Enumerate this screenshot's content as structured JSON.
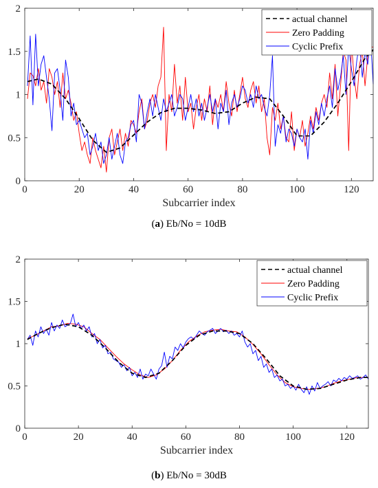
{
  "chart_data": [
    {
      "type": "line",
      "caption_letter": "a",
      "caption_text": "Eb/No = 10dB",
      "xlabel": "Subcarrier index",
      "ylabel": "",
      "xlim": [
        0,
        128
      ],
      "ylim": [
        0,
        2
      ],
      "xticks": [
        0,
        20,
        40,
        60,
        80,
        100,
        120
      ],
      "yticks": [
        0,
        0.5,
        1,
        1.5,
        2
      ],
      "grid": false,
      "legend_position": "top-right",
      "series": [
        {
          "name": "actual channel",
          "color": "#000000",
          "style": "dashed",
          "x": [
            1,
            5,
            10,
            15,
            20,
            25,
            30,
            35,
            40,
            45,
            50,
            55,
            60,
            65,
            70,
            75,
            80,
            85,
            90,
            95,
            100,
            105,
            110,
            115,
            120,
            125,
            128
          ],
          "y": [
            1.15,
            1.18,
            1.12,
            0.95,
            0.72,
            0.47,
            0.33,
            0.38,
            0.53,
            0.68,
            0.79,
            0.84,
            0.84,
            0.82,
            0.78,
            0.8,
            0.9,
            0.97,
            0.95,
            0.75,
            0.52,
            0.52,
            0.68,
            0.9,
            1.15,
            1.42,
            1.52
          ]
        },
        {
          "name": "Zero Padding",
          "color": "#ff0000",
          "style": "solid",
          "x": [
            1,
            2,
            3,
            4,
            5,
            6,
            7,
            8,
            9,
            10,
            11,
            12,
            13,
            14,
            15,
            16,
            17,
            18,
            19,
            20,
            21,
            22,
            23,
            24,
            25,
            26,
            27,
            28,
            29,
            30,
            31,
            32,
            33,
            34,
            35,
            36,
            37,
            38,
            39,
            40,
            41,
            42,
            43,
            44,
            45,
            46,
            47,
            48,
            49,
            50,
            51,
            52,
            53,
            54,
            55,
            56,
            57,
            58,
            59,
            60,
            61,
            62,
            63,
            64,
            65,
            66,
            67,
            68,
            69,
            70,
            71,
            72,
            73,
            74,
            75,
            76,
            77,
            78,
            79,
            80,
            81,
            82,
            83,
            84,
            85,
            86,
            87,
            88,
            89,
            90,
            91,
            92,
            93,
            94,
            95,
            96,
            97,
            98,
            99,
            100,
            101,
            102,
            103,
            104,
            105,
            106,
            107,
            108,
            109,
            110,
            111,
            112,
            113,
            114,
            115,
            116,
            117,
            118,
            119,
            120,
            121,
            122,
            123,
            124,
            125,
            126,
            127,
            128
          ],
          "y": [
            0.95,
            1.25,
            1.22,
            1.1,
            1.3,
            1.05,
            1.15,
            0.9,
            1.3,
            1.2,
            1.0,
            1.15,
            0.85,
            1.25,
            0.95,
            1.05,
            0.9,
            0.7,
            0.8,
            0.55,
            0.35,
            0.45,
            0.3,
            0.2,
            0.5,
            0.35,
            0.25,
            0.15,
            0.4,
            0.1,
            0.5,
            0.6,
            0.3,
            0.45,
            0.6,
            0.35,
            0.55,
            0.4,
            0.7,
            0.65,
            0.55,
            0.8,
            0.95,
            0.6,
            0.7,
            0.9,
            1.0,
            0.85,
            1.1,
            1.2,
            1.78,
            0.35,
            1.0,
            0.8,
            1.35,
            0.9,
            1.1,
            0.7,
            1.2,
            0.8,
            0.9,
            0.6,
            0.85,
            1.0,
            0.7,
            0.95,
            0.8,
            1.1,
            0.65,
            0.95,
            0.85,
            1.0,
            0.8,
            1.15,
            0.9,
            0.75,
            1.05,
            0.8,
            1.0,
            1.2,
            0.95,
            0.85,
            1.05,
            1.15,
            0.9,
            1.1,
            0.8,
            0.95,
            0.5,
            0.3,
            0.85,
            0.7,
            0.9,
            0.6,
            0.75,
            0.5,
            0.45,
            0.8,
            0.35,
            0.6,
            0.5,
            0.7,
            0.4,
            0.55,
            0.75,
            0.6,
            0.85,
            0.7,
            0.9,
            1.0,
            0.85,
            1.25,
            0.95,
            1.35,
            0.75,
            1.1,
            1.5,
            1.4,
            0.35,
            1.6,
            1.2,
            0.95,
            1.35,
            1.5,
            1.1,
            1.45,
            1.55,
            1.55
          ]
        },
        {
          "name": "Cyclic Prefix",
          "color": "#0000ff",
          "style": "solid",
          "x": [
            1,
            2,
            3,
            4,
            5,
            6,
            7,
            8,
            9,
            10,
            11,
            12,
            13,
            14,
            15,
            16,
            17,
            18,
            19,
            20,
            21,
            22,
            23,
            24,
            25,
            26,
            27,
            28,
            29,
            30,
            31,
            32,
            33,
            34,
            35,
            36,
            37,
            38,
            39,
            40,
            41,
            42,
            43,
            44,
            45,
            46,
            47,
            48,
            49,
            50,
            51,
            52,
            53,
            54,
            55,
            56,
            57,
            58,
            59,
            60,
            61,
            62,
            63,
            64,
            65,
            66,
            67,
            68,
            69,
            70,
            71,
            72,
            73,
            74,
            75,
            76,
            77,
            78,
            79,
            80,
            81,
            82,
            83,
            84,
            85,
            86,
            87,
            88,
            89,
            90,
            91,
            92,
            93,
            94,
            95,
            96,
            97,
            98,
            99,
            100,
            101,
            102,
            103,
            104,
            105,
            106,
            107,
            108,
            109,
            110,
            111,
            112,
            113,
            114,
            115,
            116,
            117,
            118,
            119,
            120,
            121,
            122,
            123,
            124,
            125,
            126,
            127,
            128
          ],
          "y": [
            1.1,
            1.68,
            0.88,
            1.7,
            1.1,
            1.35,
            1.45,
            1.2,
            0.95,
            0.58,
            1.25,
            1.3,
            1.05,
            0.7,
            1.4,
            1.2,
            0.75,
            0.9,
            0.65,
            0.7,
            0.6,
            0.5,
            0.55,
            0.3,
            0.4,
            0.55,
            0.35,
            0.45,
            0.2,
            0.3,
            0.5,
            0.25,
            0.4,
            0.55,
            0.3,
            0.2,
            0.45,
            0.5,
            0.65,
            0.7,
            0.45,
            1.0,
            0.9,
            0.6,
            0.8,
            0.95,
            0.75,
            1.0,
            0.85,
            0.7,
            0.95,
            0.8,
            0.9,
            1.0,
            0.75,
            0.85,
            1.0,
            0.95,
            0.7,
            0.85,
            1.0,
            0.8,
            0.95,
            0.75,
            0.9,
            0.7,
            0.85,
            1.0,
            0.8,
            0.95,
            0.6,
            0.9,
            0.8,
            1.05,
            0.65,
            0.9,
            1.0,
            0.85,
            0.95,
            1.1,
            1.05,
            0.9,
            1.0,
            0.85,
            1.1,
            0.95,
            1.0,
            0.85,
            0.75,
            1.0,
            1.45,
            0.4,
            0.65,
            0.55,
            0.75,
            0.45,
            0.6,
            0.55,
            0.4,
            0.6,
            0.5,
            0.45,
            0.6,
            0.25,
            0.7,
            0.55,
            0.8,
            0.65,
            0.9,
            0.75,
            0.95,
            1.1,
            0.85,
            1.3,
            1.05,
            1.2,
            1.45,
            1.0,
            1.55,
            1.3,
            1.1,
            1.4,
            1.6,
            1.2,
            1.5,
            1.35,
            1.68,
            1.12
          ]
        }
      ]
    },
    {
      "type": "line",
      "caption_letter": "b",
      "caption_text": "Eb/No = 30dB",
      "xlabel": "Subcarrier index",
      "ylabel": "",
      "xlim": [
        0,
        128
      ],
      "ylim": [
        0,
        2
      ],
      "xticks": [
        0,
        20,
        40,
        60,
        80,
        100,
        120
      ],
      "yticks": [
        0,
        0.5,
        1,
        1.5,
        2
      ],
      "grid": false,
      "legend_position": "top-right",
      "series": [
        {
          "name": "actual channel",
          "color": "#000000",
          "style": "dashed",
          "x": [
            1,
            5,
            10,
            15,
            20,
            25,
            30,
            35,
            40,
            45,
            50,
            55,
            60,
            65,
            70,
            75,
            80,
            85,
            90,
            95,
            100,
            105,
            110,
            115,
            120,
            125,
            128
          ],
          "y": [
            1.05,
            1.12,
            1.19,
            1.23,
            1.2,
            1.1,
            0.95,
            0.78,
            0.65,
            0.6,
            0.65,
            0.8,
            0.98,
            1.1,
            1.15,
            1.15,
            1.12,
            1.0,
            0.82,
            0.62,
            0.5,
            0.46,
            0.47,
            0.52,
            0.57,
            0.6,
            0.6
          ]
        },
        {
          "name": "Zero Padding",
          "color": "#ff0000",
          "style": "solid",
          "x": [
            1,
            4,
            7,
            10,
            13,
            16,
            19,
            22,
            25,
            28,
            31,
            34,
            37,
            40,
            43,
            46,
            49,
            52,
            55,
            58,
            61,
            64,
            67,
            70,
            73,
            76,
            79,
            82,
            85,
            88,
            91,
            94,
            97,
            100,
            103,
            106,
            109,
            112,
            115,
            118,
            121,
            124,
            128
          ],
          "y": [
            1.06,
            1.1,
            1.15,
            1.2,
            1.21,
            1.24,
            1.23,
            1.2,
            1.12,
            1.05,
            0.95,
            0.85,
            0.76,
            0.69,
            0.63,
            0.6,
            0.63,
            0.7,
            0.8,
            0.92,
            1.02,
            1.09,
            1.14,
            1.16,
            1.17,
            1.15,
            1.14,
            1.08,
            0.99,
            0.88,
            0.75,
            0.63,
            0.54,
            0.49,
            0.47,
            0.46,
            0.47,
            0.49,
            0.53,
            0.56,
            0.58,
            0.6,
            0.6
          ]
        },
        {
          "name": "Cyclic Prefix",
          "color": "#0000ff",
          "style": "solid",
          "x": [
            1,
            2,
            3,
            4,
            5,
            6,
            7,
            8,
            9,
            10,
            11,
            12,
            13,
            14,
            15,
            16,
            17,
            18,
            19,
            20,
            21,
            22,
            23,
            24,
            25,
            26,
            27,
            28,
            29,
            30,
            31,
            32,
            33,
            34,
            35,
            36,
            37,
            38,
            39,
            40,
            41,
            42,
            43,
            44,
            45,
            46,
            47,
            48,
            49,
            50,
            51,
            52,
            53,
            54,
            55,
            56,
            57,
            58,
            59,
            60,
            61,
            62,
            63,
            64,
            65,
            66,
            67,
            68,
            69,
            70,
            71,
            72,
            73,
            74,
            75,
            76,
            77,
            78,
            79,
            80,
            81,
            82,
            83,
            84,
            85,
            86,
            87,
            88,
            89,
            90,
            91,
            92,
            93,
            94,
            95,
            96,
            97,
            98,
            99,
            100,
            101,
            102,
            103,
            104,
            105,
            106,
            107,
            108,
            109,
            110,
            111,
            112,
            113,
            114,
            115,
            116,
            117,
            118,
            119,
            120,
            121,
            122,
            123,
            124,
            125,
            126,
            127,
            128
          ],
          "y": [
            1.05,
            1.1,
            0.98,
            1.15,
            1.08,
            1.2,
            1.12,
            1.17,
            1.1,
            1.25,
            1.15,
            1.22,
            1.18,
            1.28,
            1.2,
            1.22,
            1.24,
            1.35,
            1.2,
            1.25,
            1.18,
            1.22,
            1.15,
            1.2,
            1.08,
            1.12,
            1.0,
            1.05,
            0.95,
            0.98,
            0.88,
            0.9,
            0.82,
            0.8,
            0.78,
            0.72,
            0.75,
            0.68,
            0.72,
            0.62,
            0.66,
            0.6,
            0.7,
            0.58,
            0.64,
            0.62,
            0.7,
            0.64,
            0.58,
            0.7,
            0.74,
            0.9,
            0.72,
            0.85,
            0.82,
            0.96,
            0.92,
            1.0,
            0.95,
            1.02,
            1.06,
            1.08,
            1.05,
            1.1,
            1.15,
            1.12,
            1.1,
            1.14,
            1.16,
            1.18,
            1.12,
            1.15,
            1.18,
            1.14,
            1.16,
            1.12,
            1.15,
            1.1,
            1.12,
            1.08,
            1.15,
            1.02,
            0.96,
            1.0,
            0.88,
            0.92,
            0.8,
            0.85,
            0.72,
            0.76,
            0.66,
            0.7,
            0.6,
            0.63,
            0.56,
            0.58,
            0.5,
            0.52,
            0.47,
            0.5,
            0.45,
            0.52,
            0.46,
            0.42,
            0.49,
            0.4,
            0.5,
            0.44,
            0.54,
            0.47,
            0.5,
            0.52,
            0.55,
            0.5,
            0.57,
            0.55,
            0.59,
            0.56,
            0.6,
            0.58,
            0.62,
            0.59,
            0.6,
            0.62,
            0.58,
            0.6,
            0.63,
            0.58
          ]
        }
      ]
    }
  ]
}
